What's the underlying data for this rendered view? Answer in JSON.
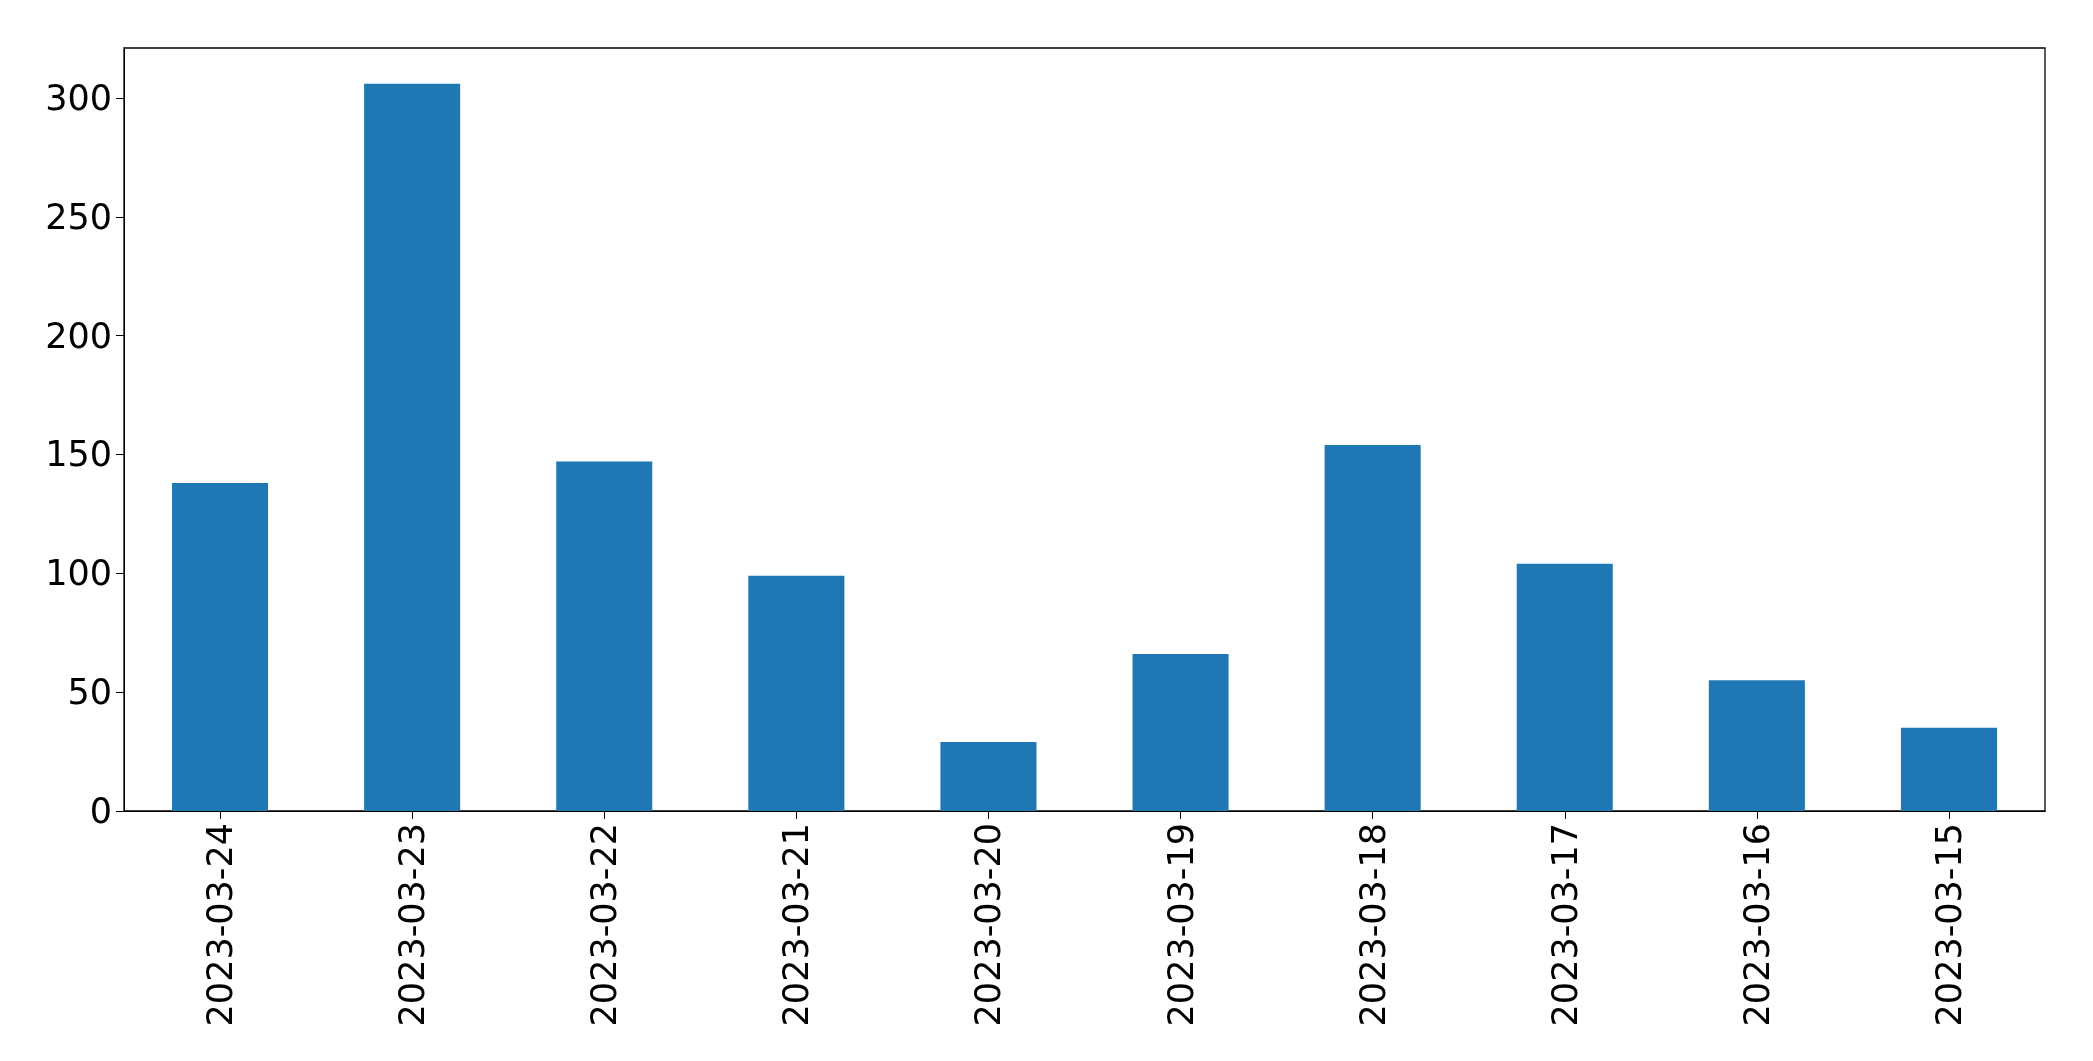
{
  "chart_data": {
    "type": "bar",
    "categories": [
      "2023-03-24",
      "2023-03-23",
      "2023-03-22",
      "2023-03-21",
      "2023-03-20",
      "2023-03-19",
      "2023-03-18",
      "2023-03-17",
      "2023-03-16",
      "2023-03-15"
    ],
    "values": [
      138,
      306,
      147,
      99,
      29,
      66,
      154,
      104,
      55,
      35
    ],
    "color": "#1f77b4",
    "ylim": [
      0,
      321
    ],
    "yticks": [
      0,
      50,
      100,
      150,
      200,
      250,
      300
    ],
    "grid": false
  }
}
